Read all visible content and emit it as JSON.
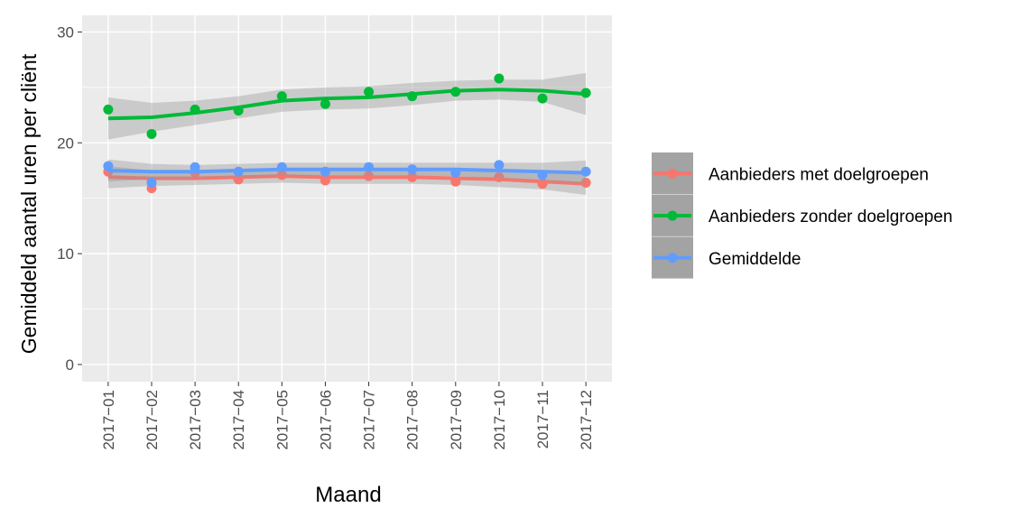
{
  "chart_data": {
    "type": "line",
    "x_label": "Maand",
    "y_label": "Gemiddeld aantal uren per cliënt",
    "categories": [
      "2017−01",
      "2017−02",
      "2017−03",
      "2017−04",
      "2017−05",
      "2017−06",
      "2017−07",
      "2017−08",
      "2017−09",
      "2017−10",
      "2017−11",
      "2017−12"
    ],
    "ylim": [
      -1.55,
      31.5
    ],
    "yticks": [
      0,
      10,
      20,
      30
    ],
    "grid": true,
    "legend": "right",
    "series": [
      {
        "name": "Aanbieders met doelgroepen",
        "color": "#F8766D",
        "values": [
          17.4,
          15.9,
          17.3,
          16.7,
          17.1,
          16.6,
          17.0,
          16.9,
          16.5,
          16.9,
          16.3,
          16.4
        ],
        "smooth": [
          16.9,
          16.8,
          16.8,
          16.9,
          17.0,
          16.9,
          16.9,
          16.9,
          16.8,
          16.7,
          16.5,
          16.3
        ],
        "lower": [
          15.9,
          16.1,
          16.2,
          16.3,
          16.4,
          16.3,
          16.3,
          16.3,
          16.2,
          16.0,
          15.8,
          15.3
        ],
        "upper": [
          17.9,
          17.5,
          17.4,
          17.5,
          17.6,
          17.5,
          17.5,
          17.5,
          17.4,
          17.4,
          17.2,
          17.3
        ]
      },
      {
        "name": "Aanbieders zonder doelgroepen",
        "color": "#00BA38",
        "values": [
          23.0,
          20.8,
          23.0,
          22.9,
          24.2,
          23.5,
          24.6,
          24.2,
          24.6,
          25.8,
          24.0,
          24.5
        ],
        "smooth": [
          22.2,
          22.3,
          22.7,
          23.2,
          23.8,
          24.0,
          24.1,
          24.4,
          24.7,
          24.8,
          24.7,
          24.4
        ],
        "lower": [
          20.3,
          21.0,
          21.6,
          22.2,
          22.8,
          23.0,
          23.1,
          23.4,
          23.8,
          23.9,
          23.7,
          22.5
        ],
        "upper": [
          24.1,
          23.6,
          23.8,
          24.2,
          24.8,
          25.0,
          25.1,
          25.4,
          25.6,
          25.7,
          25.7,
          26.3
        ]
      },
      {
        "name": "Gemiddelde",
        "color": "#619CFF",
        "values": [
          17.9,
          16.4,
          17.8,
          17.4,
          17.8,
          17.4,
          17.8,
          17.6,
          17.3,
          18.0,
          17.1,
          17.4
        ],
        "smooth": [
          17.5,
          17.4,
          17.4,
          17.5,
          17.6,
          17.6,
          17.6,
          17.6,
          17.6,
          17.5,
          17.4,
          17.3
        ],
        "lower": [
          16.5,
          16.7,
          16.8,
          16.9,
          17.0,
          17.0,
          17.0,
          17.0,
          17.0,
          16.8,
          16.6,
          16.2
        ],
        "upper": [
          18.5,
          18.1,
          18.0,
          18.1,
          18.2,
          18.2,
          18.2,
          18.2,
          18.2,
          18.2,
          18.2,
          18.4
        ]
      }
    ]
  }
}
